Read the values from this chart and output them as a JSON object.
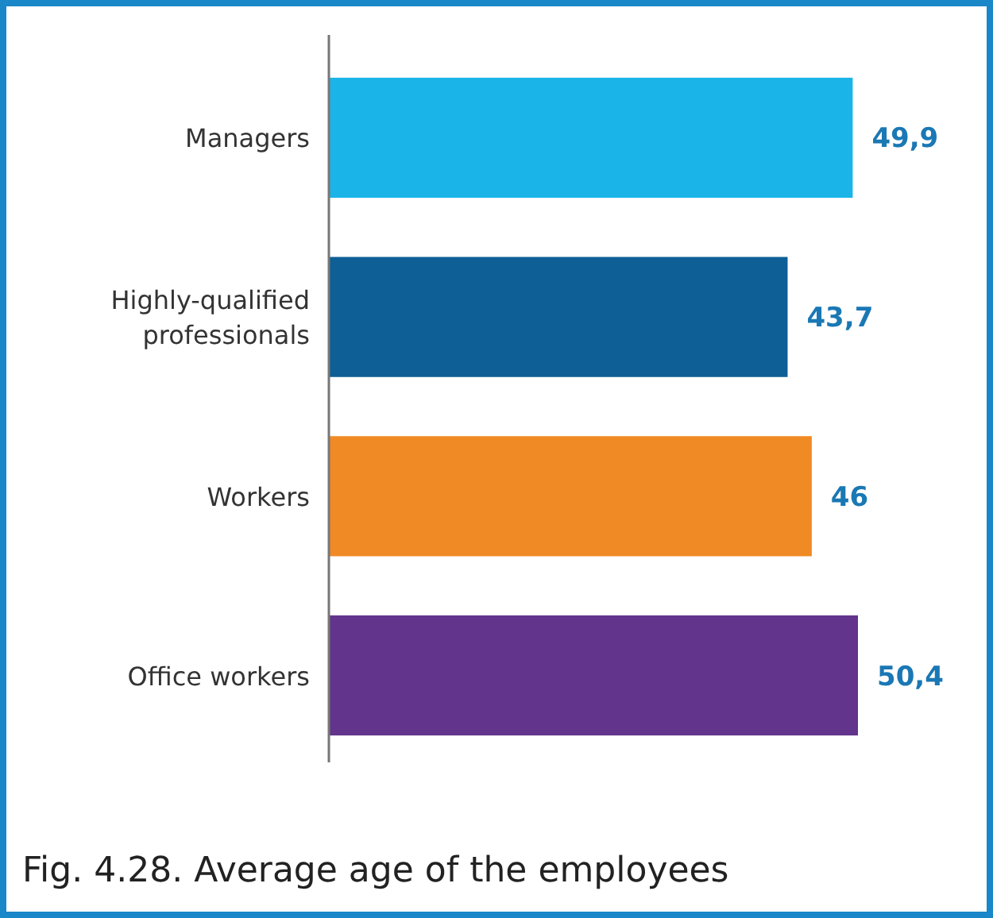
{
  "chart_data": {
    "type": "bar",
    "orientation": "horizontal",
    "categories": [
      "Managers",
      "Highly-qualified professionals",
      "Workers",
      "Office workers"
    ],
    "values": [
      49.9,
      43.7,
      46,
      50.4
    ],
    "value_labels": [
      "49,9",
      "43,7",
      "46",
      "50,4"
    ],
    "colors": [
      "#1ab4e8",
      "#0e5f96",
      "#f08a24",
      "#63348c"
    ],
    "tick_labels": "y",
    "annotations": [
      "Fig. 4.28. Average age of the employees"
    ]
  }
}
